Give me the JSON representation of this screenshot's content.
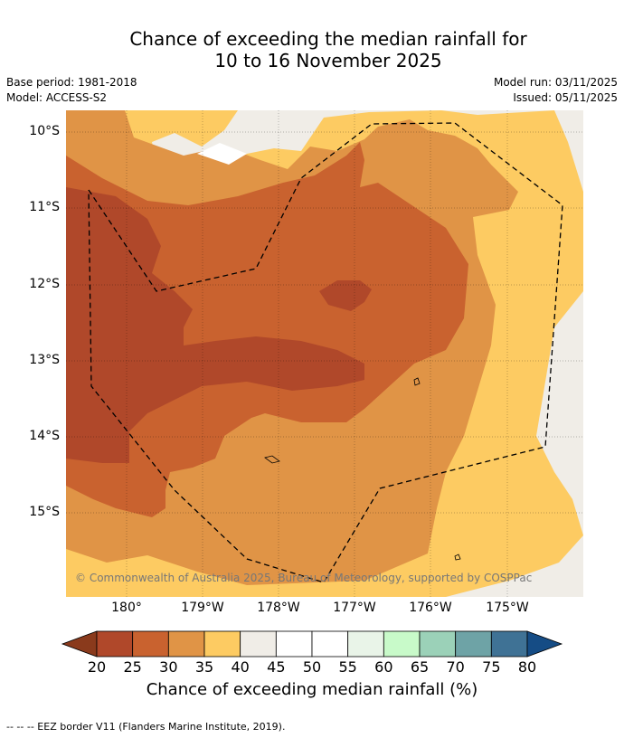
{
  "title": {
    "line1": "Chance of exceeding the median rainfall for",
    "line2": "10 to 16 November 2025"
  },
  "meta": {
    "base_period": "Base period: 1981-2018",
    "model": "Model: ACCESS-S2",
    "model_run": "Model run: 03/11/2025",
    "issued": "Issued: 05/11/2025"
  },
  "map": {
    "latitude_labels": [
      "10°S",
      "11°S",
      "12°S",
      "13°S",
      "14°S",
      "15°S"
    ],
    "longitude_labels": [
      "180°",
      "179°W",
      "178°W",
      "177°W",
      "176°W",
      "175°W"
    ],
    "copyright": "© Commonwealth of Australia 2025, Bureau of Meteorology, supported by COSPPac"
  },
  "colorbar": {
    "ticks": [
      "20",
      "25",
      "30",
      "35",
      "40",
      "45",
      "50",
      "55",
      "60",
      "65",
      "70",
      "75",
      "80"
    ],
    "colors": [
      "#8a3a1c",
      "#b0482a",
      "#c9622f",
      "#e09446",
      "#fdcb62",
      "#f0ede7",
      "#ffffff",
      "#ffffff",
      "#e9f4e8",
      "#c8fac9",
      "#9bd1b8",
      "#6ea3a6",
      "#3f7295",
      "#154c85"
    ],
    "label": "Chance of exceeding median rainfall (%)"
  },
  "footer": {
    "legend_text": "--  --  -- EEZ border V11 (Flanders Marine Institute, 2019)."
  }
}
